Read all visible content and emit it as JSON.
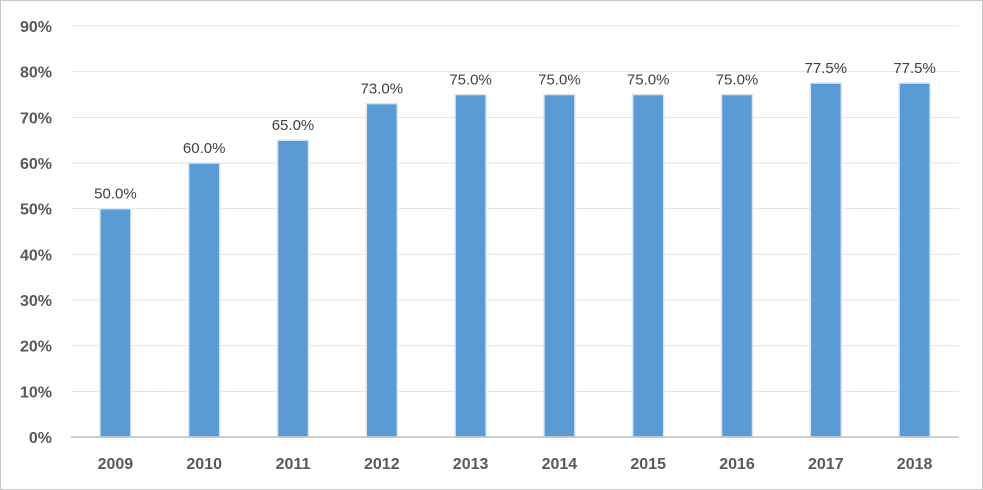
{
  "chart_data": {
    "type": "bar",
    "title": "",
    "xlabel": "",
    "ylabel": "",
    "categories": [
      "2009",
      "2010",
      "2011",
      "2012",
      "2013",
      "2014",
      "2015",
      "2016",
      "2017",
      "2018"
    ],
    "values": [
      50.0,
      60.0,
      65.0,
      73.0,
      75.0,
      75.0,
      75.0,
      75.0,
      77.5,
      77.5
    ],
    "data_labels": [
      "50.0%",
      "60.0%",
      "65.0%",
      "73.0%",
      "75.0%",
      "75.0%",
      "75.0%",
      "75.0%",
      "77.5%",
      "77.5%"
    ],
    "ylim": [
      0,
      90
    ],
    "y_ticks": [
      0,
      10,
      20,
      30,
      40,
      50,
      60,
      70,
      80,
      90
    ],
    "y_tick_labels": [
      "0%",
      "10%",
      "20%",
      "30%",
      "40%",
      "50%",
      "60%",
      "70%",
      "80%",
      "90%"
    ],
    "grid": true,
    "legend": "none",
    "colors": {
      "bar_fill": "#5b9bd5",
      "bar_outline": "#dbe6f2",
      "grid": "#e3e3e3",
      "axis": "#bfbfbf",
      "tick_text": "#595959",
      "data_label_text": "#404040"
    }
  }
}
